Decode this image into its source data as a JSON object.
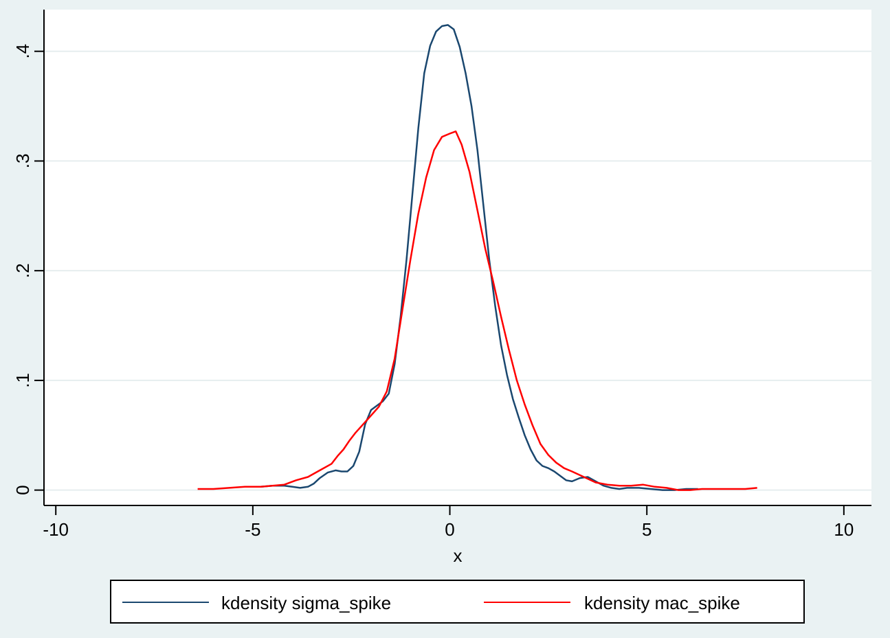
{
  "chart_data": {
    "type": "line",
    "title": "",
    "xlabel": "x",
    "ylabel": "",
    "xlim": [
      -10.3,
      10.7
    ],
    "ylim": [
      -0.014,
      0.438
    ],
    "x_ticks": [
      -10,
      -5,
      0,
      5,
      10
    ],
    "x_tick_labels": [
      "-10",
      "-5",
      "0",
      "5",
      "10"
    ],
    "y_ticks": [
      0,
      0.1,
      0.2,
      0.3,
      0.4
    ],
    "y_tick_labels": [
      "0",
      ".1",
      ".2",
      ".3",
      ".4"
    ],
    "grid": "horizontal",
    "legend_position": "bottom",
    "series": [
      {
        "name": "kdensity sigma_spike",
        "color": "#1a476f",
        "x": [
          -4.8,
          -4.5,
          -4.2,
          -4.0,
          -3.8,
          -3.6,
          -3.45,
          -3.3,
          -3.1,
          -2.9,
          -2.75,
          -2.6,
          -2.45,
          -2.3,
          -2.15,
          -2.0,
          -1.85,
          -1.7,
          -1.55,
          -1.4,
          -1.25,
          -1.1,
          -0.95,
          -0.8,
          -0.65,
          -0.5,
          -0.35,
          -0.2,
          -0.05,
          0.1,
          0.25,
          0.4,
          0.55,
          0.7,
          0.85,
          1.0,
          1.15,
          1.3,
          1.45,
          1.6,
          1.75,
          1.9,
          2.05,
          2.2,
          2.35,
          2.5,
          2.65,
          2.8,
          2.95,
          3.1,
          3.3,
          3.5,
          3.7,
          3.9,
          4.1,
          4.3,
          4.5,
          4.8,
          5.1,
          5.4,
          5.7,
          6.0,
          6.3
        ],
        "y": [
          0.003,
          0.004,
          0.004,
          0.003,
          0.002,
          0.003,
          0.006,
          0.011,
          0.016,
          0.018,
          0.017,
          0.017,
          0.022,
          0.035,
          0.06,
          0.073,
          0.077,
          0.081,
          0.088,
          0.115,
          0.158,
          0.21,
          0.27,
          0.33,
          0.38,
          0.405,
          0.418,
          0.423,
          0.424,
          0.42,
          0.404,
          0.38,
          0.35,
          0.31,
          0.26,
          0.21,
          0.168,
          0.132,
          0.105,
          0.083,
          0.066,
          0.05,
          0.037,
          0.027,
          0.022,
          0.02,
          0.017,
          0.013,
          0.009,
          0.008,
          0.011,
          0.012,
          0.008,
          0.004,
          0.002,
          0.001,
          0.002,
          0.002,
          0.001,
          0.0,
          0.0,
          0.001,
          0.001
        ]
      },
      {
        "name": "kdensity mac_spike",
        "color": "#ff0000",
        "x": [
          -6.4,
          -6.0,
          -5.6,
          -5.2,
          -4.8,
          -4.5,
          -4.2,
          -3.9,
          -3.6,
          -3.3,
          -3.0,
          -2.85,
          -2.7,
          -2.55,
          -2.4,
          -2.2,
          -2.0,
          -1.8,
          -1.6,
          -1.4,
          -1.2,
          -1.0,
          -0.8,
          -0.6,
          -0.4,
          -0.2,
          0.0,
          0.15,
          0.3,
          0.5,
          0.7,
          0.9,
          1.1,
          1.3,
          1.5,
          1.7,
          1.9,
          2.1,
          2.3,
          2.5,
          2.7,
          2.9,
          3.1,
          3.4,
          3.7,
          4.0,
          4.3,
          4.6,
          4.9,
          5.2,
          5.5,
          5.8,
          6.1,
          6.4,
          6.8,
          7.2,
          7.5,
          7.8
        ],
        "y": [
          0.001,
          0.001,
          0.002,
          0.003,
          0.003,
          0.004,
          0.005,
          0.009,
          0.012,
          0.018,
          0.024,
          0.031,
          0.037,
          0.045,
          0.052,
          0.06,
          0.068,
          0.076,
          0.09,
          0.12,
          0.165,
          0.21,
          0.252,
          0.285,
          0.31,
          0.322,
          0.325,
          0.327,
          0.315,
          0.29,
          0.255,
          0.22,
          0.19,
          0.158,
          0.128,
          0.1,
          0.078,
          0.059,
          0.042,
          0.032,
          0.025,
          0.02,
          0.017,
          0.012,
          0.007,
          0.005,
          0.004,
          0.004,
          0.005,
          0.003,
          0.002,
          0.0,
          0.0,
          0.001,
          0.001,
          0.001,
          0.001,
          0.002
        ]
      }
    ]
  }
}
